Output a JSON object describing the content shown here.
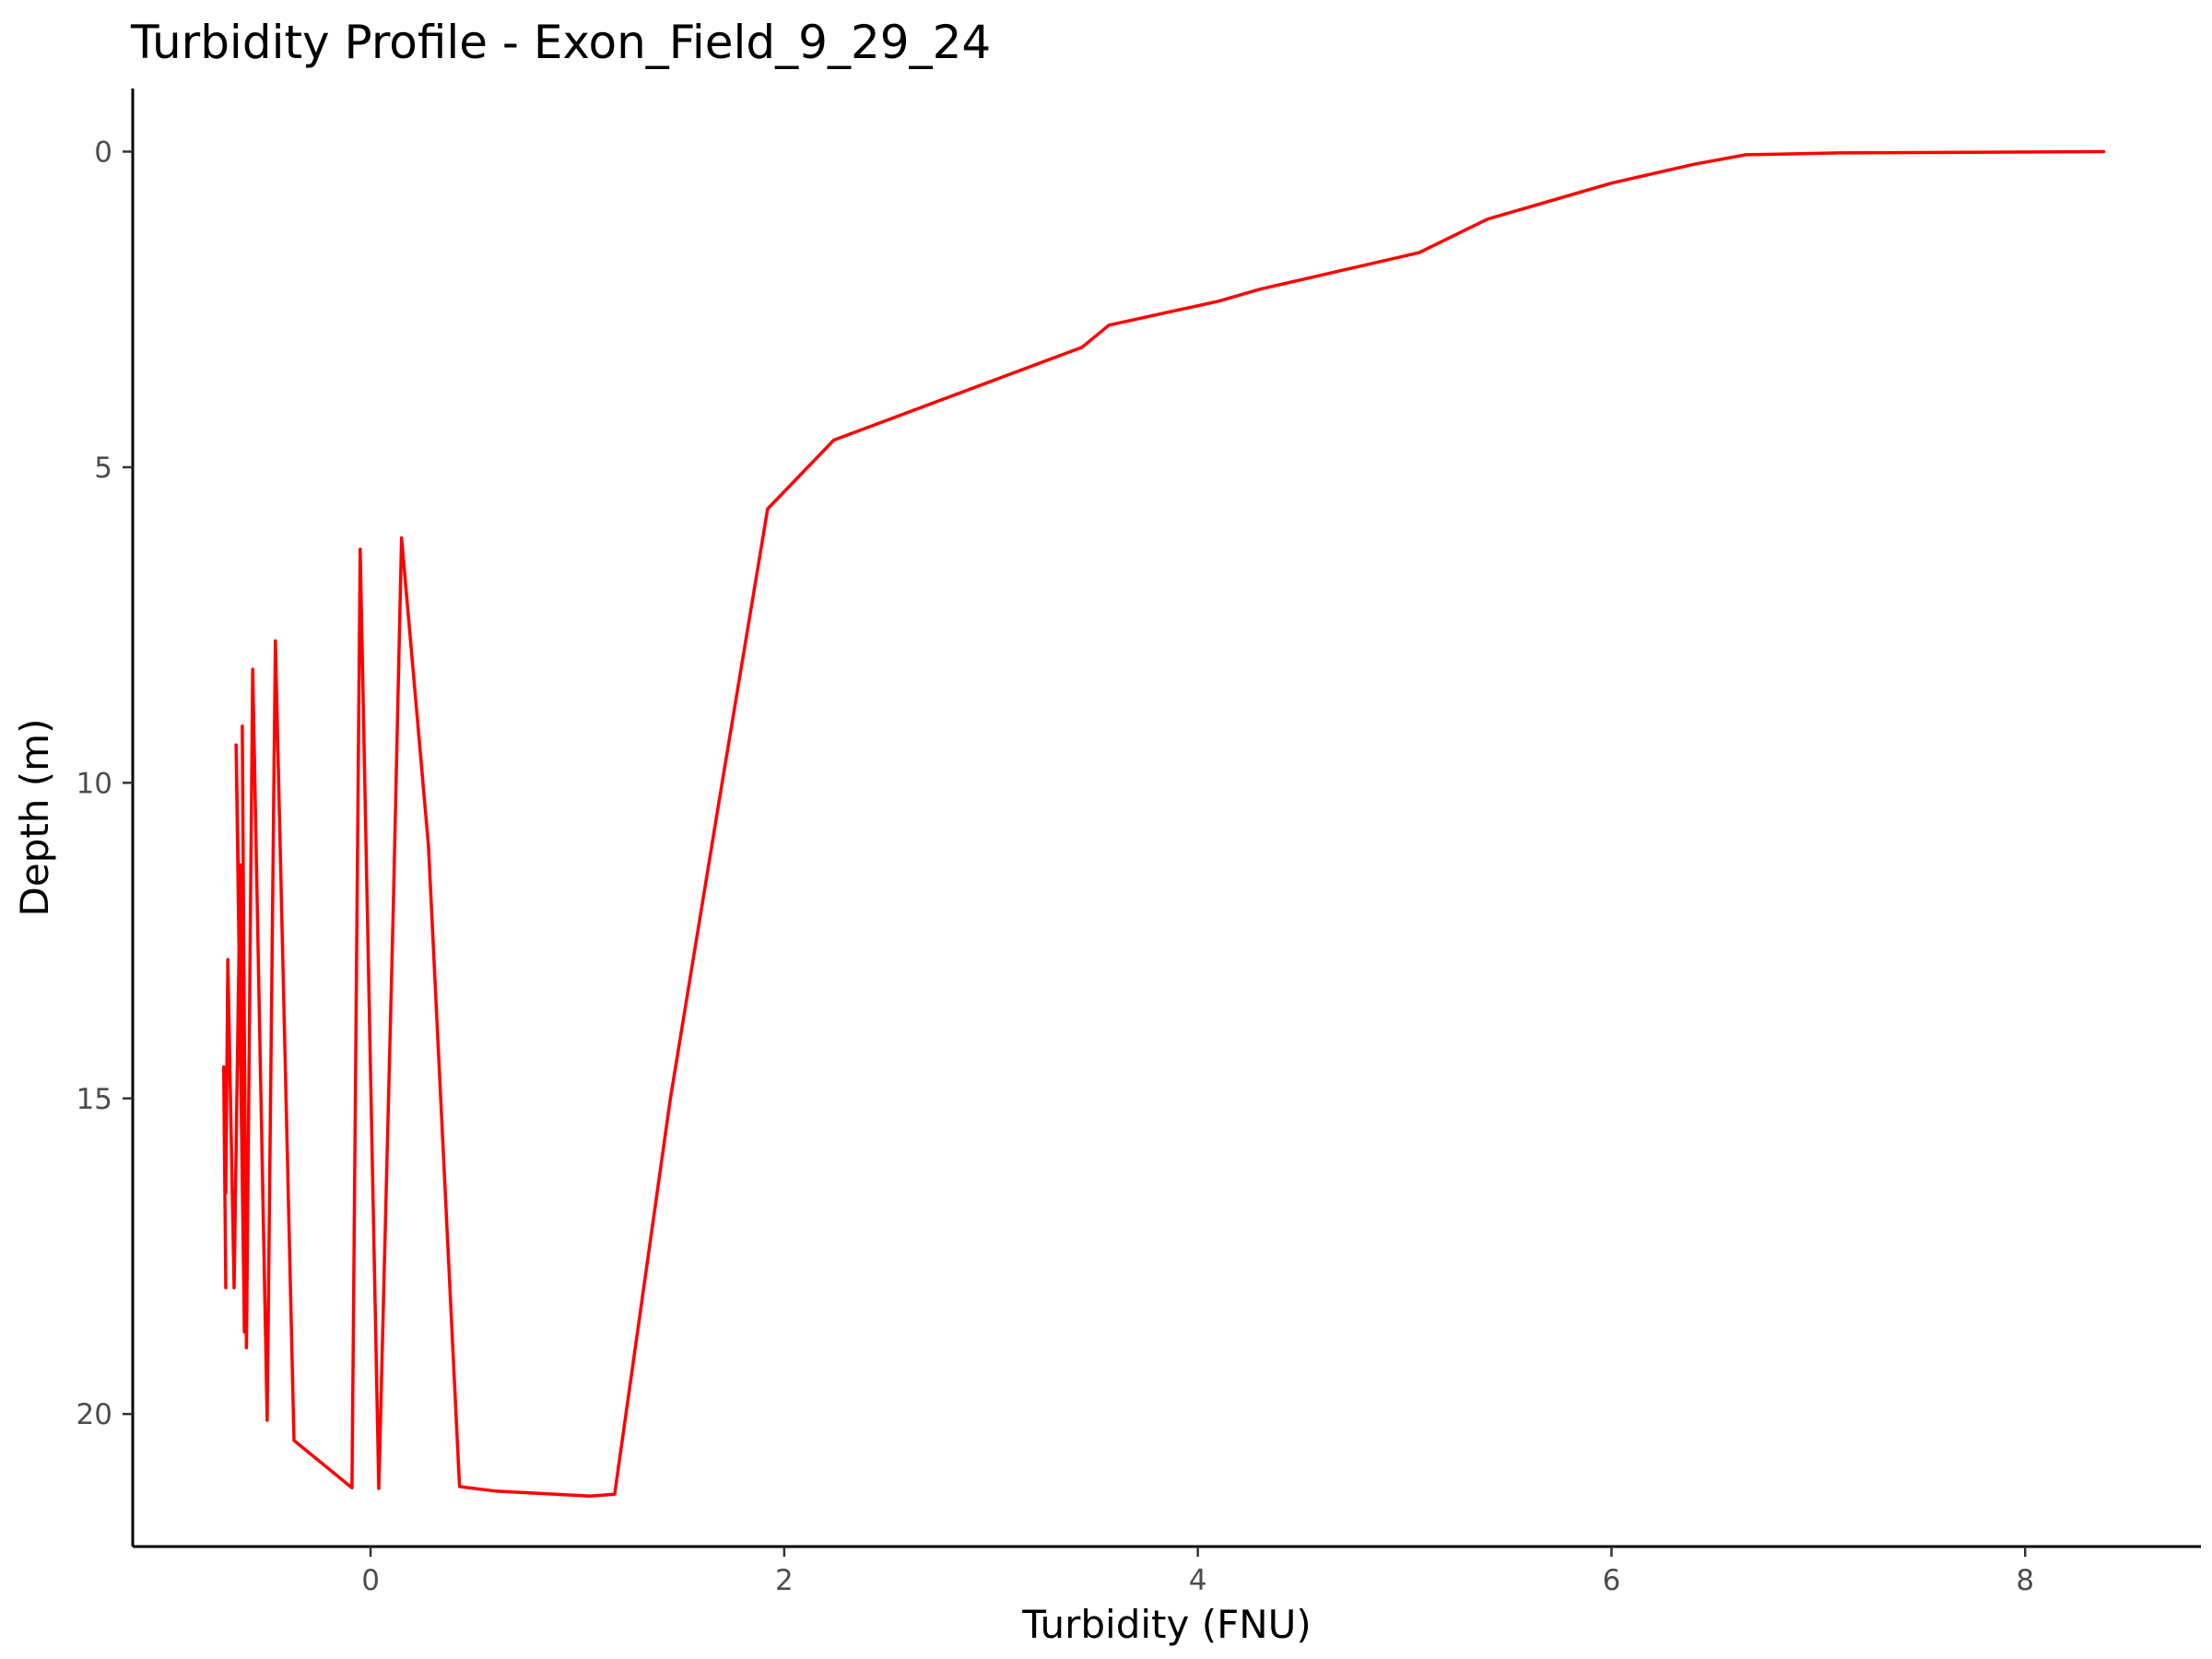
{
  "chart_data": {
    "type": "line",
    "title": "Turbidity Profile - Exon_Field_9_29_24",
    "xlabel": "Turbidity (FNU)",
    "ylabel": "Depth (m)",
    "xlim": [
      -1.15,
      8.85
    ],
    "ylim": [
      22.1,
      -1.0
    ],
    "y_reversed": true,
    "x_ticks": [
      0,
      2,
      4,
      6,
      8
    ],
    "y_ticks": [
      0,
      5,
      10,
      15,
      20
    ],
    "x_tick_labels": [
      "0",
      "2",
      "4",
      "6",
      "8"
    ],
    "y_tick_labels": [
      "0",
      "5",
      "10",
      "15",
      "20"
    ],
    "grid": false,
    "legend": "none",
    "line_color": "#ff0000",
    "series": [
      {
        "x": [
          8.38,
          7.1,
          6.65,
          6.4,
          6.0,
          5.4,
          5.07,
          4.3,
          4.1,
          3.57,
          3.44,
          2.24,
          1.92,
          1.7,
          1.45,
          1.18,
          1.06,
          0.6,
          0.43,
          0.28,
          0.15,
          0.11,
          0.04,
          -0.05,
          -0.09,
          -0.37,
          -0.46,
          -0.5,
          -0.57,
          -0.6,
          -0.62,
          -0.6,
          -0.65,
          -0.61,
          -0.63,
          -0.66,
          -0.69,
          -0.7,
          -0.71,
          -0.7
        ],
        "y": [
          0.0,
          0.02,
          0.05,
          0.2,
          0.5,
          1.07,
          1.6,
          2.18,
          2.37,
          2.75,
          3.1,
          4.57,
          5.66,
          10.0,
          15.0,
          21.27,
          21.3,
          21.22,
          21.15,
          11.0,
          6.12,
          12.0,
          21.18,
          6.3,
          21.17,
          20.42,
          7.75,
          20.1,
          8.2,
          18.95,
          9.1,
          18.85,
          9.4,
          18.7,
          11.3,
          18.0,
          12.8,
          16.5,
          14.5,
          18.0
        ]
      }
    ]
  }
}
